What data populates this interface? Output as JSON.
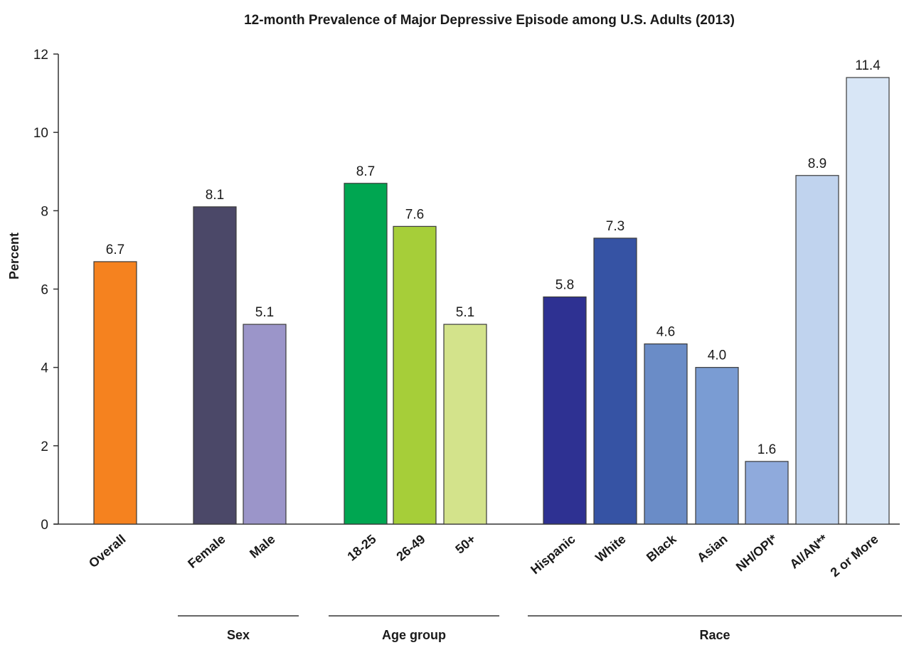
{
  "chart_data": {
    "type": "bar",
    "title": "12-month Prevalence of Major Depressive Episode among U.S. Adults (2013)",
    "ylabel": "Percent",
    "ylim": [
      0,
      12
    ],
    "yticks": [
      0,
      2,
      4,
      6,
      8,
      10,
      12
    ],
    "grid": false,
    "categories": [
      "Overall",
      "Female",
      "Male",
      "18-25",
      "26-49",
      "50+",
      "Hispanic",
      "White",
      "Black",
      "Asian",
      "NH/OPI*",
      "AI/AN**",
      "2 or More"
    ],
    "values": [
      6.7,
      8.1,
      5.1,
      8.7,
      7.6,
      5.1,
      5.8,
      7.3,
      4.6,
      4.0,
      1.6,
      8.9,
      11.4
    ],
    "value_labels": [
      "6.7",
      "8.1",
      "5.1",
      "8.7",
      "7.6",
      "5.1",
      "5.8",
      "7.3",
      "4.6",
      "4.0",
      "1.6",
      "8.9",
      "11.4"
    ],
    "colors": [
      "#f5821f",
      "#4b4868",
      "#9b95c9",
      "#00a651",
      "#a6ce39",
      "#d3e38b",
      "#2e3192",
      "#3653a4",
      "#6a8cc7",
      "#7a9cd3",
      "#8faadc",
      "#c0d3ee",
      "#d8e6f6"
    ],
    "groups": [
      {
        "label": "Sex",
        "members": [
          "Female",
          "Male"
        ]
      },
      {
        "label": "Age group",
        "members": [
          "18-25",
          "26-49",
          "50+"
        ]
      },
      {
        "label": "Race",
        "members": [
          "Hispanic",
          "White",
          "Black",
          "Asian",
          "NH/OPI*",
          "AI/AN**",
          "2 or More"
        ]
      }
    ]
  }
}
